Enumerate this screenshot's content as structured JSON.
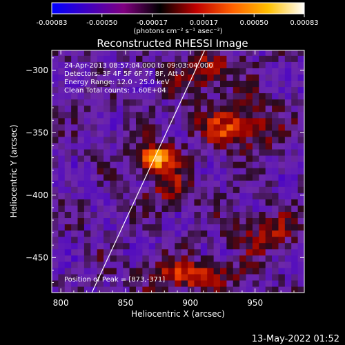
{
  "colorbar": {
    "ticks": [
      "-0.00083",
      "-0.00050",
      "-0.00017",
      "0.00017",
      "0.00050",
      "0.00083"
    ],
    "unit_label": "(photons cm⁻² s⁻¹ asec⁻²)",
    "range": [
      -0.00083,
      0.00083
    ],
    "colors": [
      "#0000ff",
      "#4000c0",
      "#800080",
      "#000000",
      "#c00000",
      "#ff6000",
      "#ffc000",
      "#ffffff"
    ]
  },
  "chart_data": {
    "type": "heatmap",
    "title": "Reconstructed RHESSI Image",
    "xlabel": "Heliocentric X (arcsec)",
    "ylabel": "Heliocentric Y (arcsec)",
    "xlim": [
      793,
      988
    ],
    "ylim": [
      -478,
      -284
    ],
    "xticks": [
      800,
      850,
      900,
      950
    ],
    "yticks": [
      -300,
      -350,
      -400,
      -450
    ],
    "xtick_labels": [
      "800",
      "850",
      "900",
      "950"
    ],
    "ytick_labels": [
      "−300",
      "−350",
      "−400",
      "−450"
    ],
    "info_lines": [
      "24-Apr-2013 08:57:04.000 to 09:03:04.000",
      "Detectors: 3F 4F 5F 6F 7F 8F, Att 0",
      "Energy Range: 12.0 - 25.0 keV",
      "Clean    Total counts: 1.60E+04"
    ],
    "peak_label": "Position of Peak = [873,-371]",
    "peak": [
      873,
      -371
    ],
    "limb_line": [
      [
        824,
        -478
      ],
      [
        911,
        -284
      ]
    ],
    "sources": [
      {
        "x": 873,
        "y": -370,
        "sx": 11,
        "sy": 8,
        "amp": 0.00083
      },
      {
        "x": 935,
        "y": -345,
        "sx": 22,
        "sy": 12,
        "amp": 0.0005
      },
      {
        "x": 912,
        "y": -300,
        "sx": 18,
        "sy": 12,
        "amp": 0.0004
      },
      {
        "x": 900,
        "y": -463,
        "sx": 26,
        "sy": 8,
        "amp": 0.00055
      },
      {
        "x": 960,
        "y": -430,
        "sx": 18,
        "sy": 12,
        "amp": 0.00035
      },
      {
        "x": 885,
        "y": -395,
        "sx": 14,
        "sy": 12,
        "amp": 0.0003
      }
    ],
    "background_level": -0.0002
  },
  "footer": {
    "timestamp": "13-May-2022 01:52"
  }
}
